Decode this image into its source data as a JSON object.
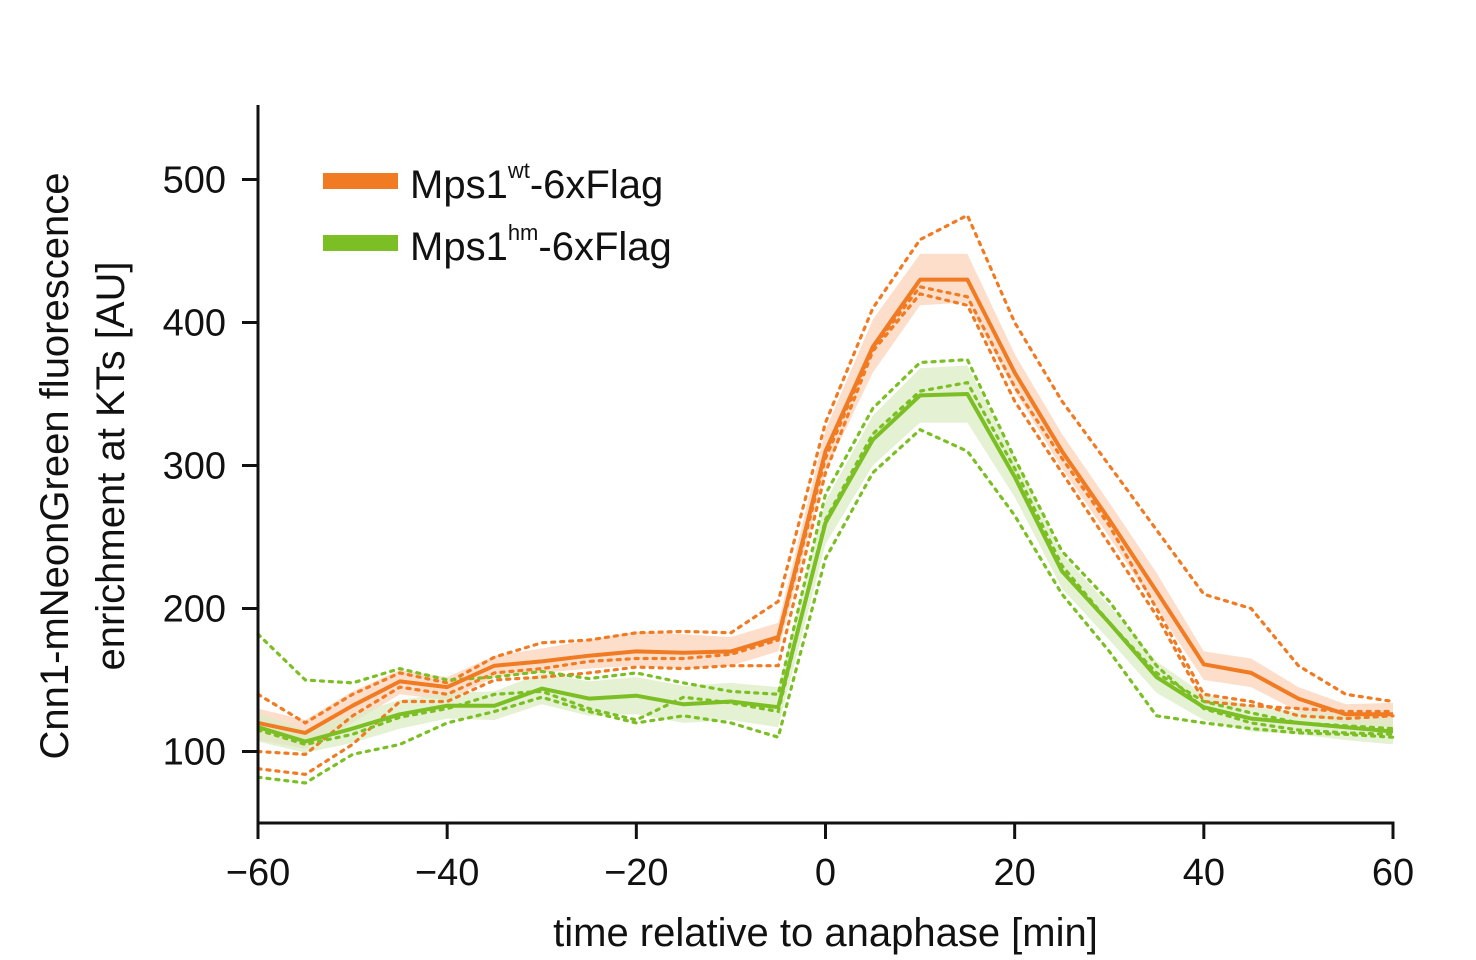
{
  "chart_data": {
    "type": "line",
    "title": "",
    "xlabel": "time relative to anaphase [min]",
    "ylabel_lines": [
      "Cnn1-mNeonGreen fluorescence",
      "enrichment at KTs [AU]"
    ],
    "xlim": [
      -60,
      60
    ],
    "ylim": [
      50,
      550
    ],
    "xticks": [
      -60,
      -40,
      -20,
      0,
      20,
      40,
      60
    ],
    "xtick_labels": [
      "−60",
      "−40",
      "−20",
      "0",
      "20",
      "40",
      "60"
    ],
    "yticks": [
      100,
      200,
      300,
      400,
      500
    ],
    "ytick_labels": [
      "100",
      "200",
      "300",
      "400",
      "500"
    ],
    "grid": false,
    "legend_position": "top-left",
    "x": [
      -60,
      -55,
      -50,
      -45,
      -40,
      -35,
      -30,
      -25,
      -20,
      -15,
      -10,
      -5,
      0,
      5,
      10,
      15,
      20,
      25,
      30,
      35,
      40,
      45,
      50,
      55,
      60
    ],
    "series": [
      {
        "name": "Mps1",
        "name_sup": "wt",
        "name_suffix": "-6xFlag",
        "color": "#f07b23",
        "band_color": "#fbd3b8",
        "mean": [
          120,
          113,
          132,
          149,
          145,
          160,
          163,
          167,
          170,
          169,
          170,
          180,
          310,
          383,
          430,
          430,
          365,
          310,
          262,
          212,
          161,
          155,
          137,
          126,
          126
        ],
        "band_upper": [
          130,
          122,
          142,
          157,
          152,
          167,
          172,
          178,
          184,
          182,
          180,
          190,
          325,
          402,
          448,
          448,
          378,
          322,
          274,
          225,
          170,
          165,
          145,
          133,
          134
        ],
        "band_lower": [
          108,
          102,
          120,
          140,
          136,
          152,
          155,
          158,
          160,
          158,
          160,
          170,
          296,
          365,
          412,
          414,
          352,
          298,
          250,
          200,
          150,
          145,
          128,
          119,
          117
        ],
        "replicates": [
          [
            140,
            120,
            140,
            155,
            148,
            166,
            176,
            178,
            183,
            184,
            183,
            205,
            330,
            410,
            458,
            475,
            400,
            345,
            300,
            255,
            210,
            200,
            160,
            140,
            135
          ],
          [
            100,
            98,
            125,
            145,
            140,
            155,
            158,
            163,
            165,
            165,
            168,
            178,
            305,
            382,
            425,
            418,
            355,
            305,
            258,
            200,
            140,
            135,
            125,
            123,
            125
          ],
          [
            88,
            84,
            105,
            135,
            135,
            150,
            152,
            155,
            159,
            158,
            160,
            160,
            295,
            380,
            420,
            412,
            345,
            295,
            245,
            195,
            135,
            132,
            130,
            128,
            128
          ]
        ]
      },
      {
        "name": "Mps1",
        "name_sup": "hm",
        "name_suffix": "-6xFlag",
        "color": "#7cbf24",
        "band_color": "#dbecc4",
        "mean": [
          117,
          107,
          116,
          126,
          132,
          132,
          144,
          137,
          139,
          133,
          135,
          131,
          260,
          318,
          349,
          350,
          292,
          226,
          190,
          152,
          131,
          123,
          120,
          117,
          114
        ],
        "band_upper": [
          127,
          115,
          126,
          136,
          141,
          142,
          155,
          149,
          152,
          146,
          148,
          145,
          275,
          335,
          368,
          370,
          305,
          238,
          202,
          163,
          140,
          132,
          128,
          125,
          123
        ],
        "band_lower": [
          107,
          99,
          106,
          116,
          123,
          122,
          133,
          125,
          126,
          120,
          122,
          117,
          245,
          300,
          330,
          330,
          278,
          214,
          178,
          141,
          122,
          114,
          112,
          108,
          105
        ],
        "replicates": [
          [
            182,
            150,
            148,
            158,
            150,
            152,
            156,
            151,
            155,
            148,
            142,
            140,
            280,
            340,
            372,
            374,
            305,
            240,
            205,
            160,
            130,
            120,
            115,
            113,
            112
          ],
          [
            115,
            105,
            112,
            124,
            130,
            140,
            142,
            130,
            122,
            138,
            134,
            128,
            262,
            322,
            352,
            358,
            298,
            230,
            190,
            155,
            135,
            127,
            120,
            118,
            116
          ],
          [
            82,
            78,
            98,
            105,
            120,
            128,
            138,
            128,
            120,
            125,
            120,
            110,
            235,
            295,
            325,
            310,
            265,
            210,
            170,
            125,
            120,
            116,
            113,
            112,
            110
          ]
        ]
      }
    ]
  }
}
